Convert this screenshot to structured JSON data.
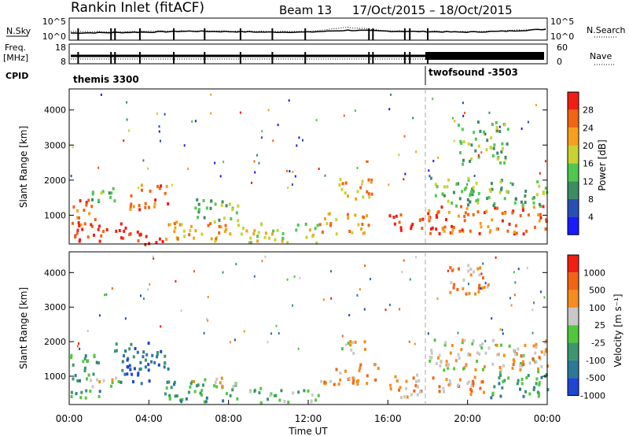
{
  "header": {
    "station": "Rankin Inlet (fitACF)",
    "beam": "Beam 13",
    "dates": "17/Oct/2015 – 18/Oct/2015"
  },
  "colors": {
    "nsky": "#000000",
    "freq": "#000000",
    "cpid": "#000000"
  },
  "chart_data": [
    {
      "type": "line",
      "title": "",
      "xlabel": "",
      "ylabel": "N.Sky",
      "y2label": "N.Search",
      "ytick_left": [
        "10^5",
        "10^0"
      ],
      "ytick_right": [
        "10^5",
        "10^0"
      ],
      "x_hours": [
        0,
        2,
        4,
        6,
        8,
        10,
        12,
        14,
        16,
        18,
        20,
        22,
        24
      ],
      "series": [
        {
          "name": "N.Sky",
          "style": "solid",
          "values": [
            10,
            11,
            12,
            14,
            13,
            12,
            12,
            16,
            14,
            13,
            12,
            14,
            18
          ]
        },
        {
          "name": "N.Search",
          "style": "dotted",
          "values": [
            14,
            13,
            14,
            15,
            14,
            13,
            13,
            22,
            15,
            14,
            13,
            15,
            19
          ]
        }
      ]
    },
    {
      "type": "line",
      "ylabel_top": "Freq.",
      "ylabel_unit": "[MHz]",
      "y2label": "Nave",
      "ytick_left": [
        "18",
        "8"
      ],
      "ytick_right": [
        "60",
        "0"
      ],
      "freq_mhz": 10.5
    },
    {
      "type": "table",
      "label": "CPID",
      "segments": [
        {
          "name": "themis 3300",
          "start_hour": 0,
          "end_hour": 18
        },
        {
          "name": "twofsound -3503",
          "start_hour": 18,
          "end_hour": 24
        }
      ]
    },
    {
      "type": "heatmap",
      "quantity": "power",
      "ylabel": "Slant Range [km]",
      "yticks": [
        "1000",
        "2000",
        "3000",
        "4000"
      ],
      "ylim": [
        180,
        4600
      ],
      "colorbar_title": "Power [dB]",
      "colorbar_ticks": [
        "4",
        "8",
        "12",
        "16",
        "20",
        "24",
        "28"
      ],
      "colorbar_colors": [
        "#1a1aff",
        "#2850b4",
        "#3c8c64",
        "#50c850",
        "#c8d232",
        "#f5a01e",
        "#f06414",
        "#f01e14"
      ],
      "bands": [
        {
          "x0": 0.0,
          "x1": 1.3,
          "r0": 700,
          "r1": 1500,
          "level": 6
        },
        {
          "x0": 0.2,
          "x1": 3.0,
          "r0": 300,
          "r1": 800,
          "level": 7
        },
        {
          "x0": 1.0,
          "x1": 2.3,
          "r0": 1400,
          "r1": 2000,
          "level": 3
        },
        {
          "x0": 2.5,
          "x1": 4.8,
          "r0": 200,
          "r1": 600,
          "level": 7
        },
        {
          "x0": 3.0,
          "x1": 5.0,
          "r0": 1200,
          "r1": 1900,
          "level": 6
        },
        {
          "x0": 4.8,
          "x1": 8.5,
          "r0": 300,
          "r1": 900,
          "level": 5
        },
        {
          "x0": 6.0,
          "x1": 8.5,
          "r0": 900,
          "r1": 1500,
          "level": 3
        },
        {
          "x0": 8.5,
          "x1": 12.5,
          "r0": 250,
          "r1": 800,
          "level": 4
        },
        {
          "x0": 12.5,
          "x1": 15.0,
          "r0": 500,
          "r1": 1100,
          "level": 5
        },
        {
          "x0": 13.5,
          "x1": 15.5,
          "r0": 1500,
          "r1": 2100,
          "level": 5
        },
        {
          "x0": 16.0,
          "x1": 18.2,
          "r0": 600,
          "r1": 1100,
          "level": 7
        },
        {
          "x0": 18.0,
          "x1": 24.0,
          "r0": 500,
          "r1": 1300,
          "level": 6
        },
        {
          "x0": 18.0,
          "x1": 24.0,
          "r0": 1300,
          "r1": 2100,
          "level": 3
        },
        {
          "x0": 19.5,
          "x1": 22.0,
          "r0": 2500,
          "r1": 3700,
          "level": 3
        }
      ]
    },
    {
      "type": "heatmap",
      "quantity": "velocity",
      "ylabel": "Slant Range [km]",
      "xlabel": "Time UT",
      "yticks": [
        "1000",
        "2000",
        "3000",
        "4000"
      ],
      "xticks": [
        "00:00",
        "04:00",
        "08:00",
        "12:00",
        "16:00",
        "20:00",
        "00:00"
      ],
      "ylim": [
        180,
        4600
      ],
      "colorbar_title": "Velocity [m s⁻¹]",
      "colorbar_ticks": [
        "1000",
        "500",
        "100",
        "25",
        "-25",
        "-100",
        "-500",
        "-1000"
      ],
      "colorbar_colors": [
        "#1e46d2",
        "#2d7896",
        "#3c966e",
        "#50c83c",
        "#c8c8c8",
        "#f58c1e",
        "#f06414",
        "#f01e14"
      ],
      "bands": [
        {
          "x0": 0.0,
          "x1": 1.5,
          "r0": 400,
          "r1": 1700,
          "level": 2
        },
        {
          "x0": 1.0,
          "x1": 3.0,
          "r0": 700,
          "r1": 1000,
          "level": 4
        },
        {
          "x0": 2.0,
          "x1": 5.0,
          "r0": 1200,
          "r1": 2000,
          "level": 1
        },
        {
          "x0": 2.5,
          "x1": 4.0,
          "r0": 800,
          "r1": 1400,
          "level": 0
        },
        {
          "x0": 4.5,
          "x1": 8.5,
          "r0": 300,
          "r1": 900,
          "level": 2
        },
        {
          "x0": 6.0,
          "x1": 8.5,
          "r0": 700,
          "r1": 1000,
          "level": 4
        },
        {
          "x0": 9.0,
          "x1": 12.5,
          "r0": 250,
          "r1": 700,
          "level": 3
        },
        {
          "x0": 12.5,
          "x1": 15.5,
          "r0": 800,
          "r1": 1400,
          "level": 5
        },
        {
          "x0": 13.5,
          "x1": 15.0,
          "r0": 1700,
          "r1": 2100,
          "level": 4
        },
        {
          "x0": 16.0,
          "x1": 18.0,
          "r0": 400,
          "r1": 1100,
          "level": 5
        },
        {
          "x0": 18.0,
          "x1": 21.0,
          "r0": 500,
          "r1": 1100,
          "level": 5
        },
        {
          "x0": 18.0,
          "x1": 24.0,
          "r0": 1200,
          "r1": 2100,
          "level": 4
        },
        {
          "x0": 21.0,
          "x1": 24.0,
          "r0": 400,
          "r1": 1200,
          "level": 2
        },
        {
          "x0": 22.0,
          "x1": 24.0,
          "r0": 1300,
          "r1": 1800,
          "level": 5
        },
        {
          "x0": 19.0,
          "x1": 21.0,
          "r0": 3400,
          "r1": 4300,
          "level": 5
        }
      ]
    }
  ]
}
